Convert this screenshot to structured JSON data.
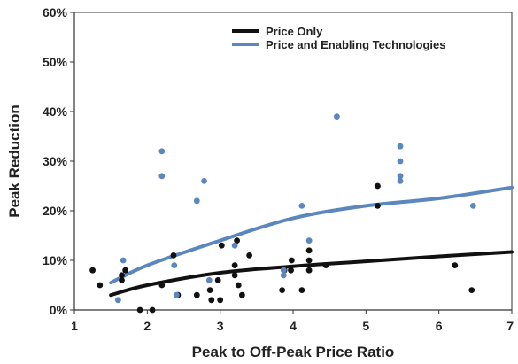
{
  "chart_data": {
    "type": "scatter",
    "xlabel": "Peak to Off-Peak Price Ratio",
    "ylabel": "Peak Reduction",
    "xlim": [
      1,
      7
    ],
    "ylim": [
      0,
      60
    ],
    "x_ticks": [
      "1",
      "2",
      "3",
      "4",
      "5",
      "6",
      "7"
    ],
    "y_ticks": [
      "0%",
      "10%",
      "20%",
      "30%",
      "40%",
      "50%",
      "60%"
    ],
    "grid": false,
    "legend_position": "top-center",
    "series": [
      {
        "name": "Price Only",
        "color": "#111111",
        "points": [
          [
            1.25,
            8
          ],
          [
            1.35,
            5
          ],
          [
            1.65,
            6
          ],
          [
            1.65,
            7
          ],
          [
            1.7,
            8
          ],
          [
            1.9,
            0
          ],
          [
            2.07,
            0
          ],
          [
            2.2,
            5
          ],
          [
            2.36,
            11
          ],
          [
            2.42,
            3
          ],
          [
            2.68,
            3
          ],
          [
            2.86,
            4
          ],
          [
            2.88,
            2
          ],
          [
            2.97,
            6
          ],
          [
            3.0,
            2
          ],
          [
            3.02,
            13
          ],
          [
            3.2,
            7
          ],
          [
            3.2,
            9
          ],
          [
            3.23,
            14
          ],
          [
            3.25,
            5
          ],
          [
            3.3,
            3
          ],
          [
            3.4,
            11
          ],
          [
            3.85,
            4
          ],
          [
            3.88,
            8
          ],
          [
            3.97,
            8
          ],
          [
            3.98,
            10
          ],
          [
            4.12,
            4
          ],
          [
            4.22,
            8
          ],
          [
            4.22,
            10
          ],
          [
            4.22,
            12
          ],
          [
            4.45,
            9
          ],
          [
            5.16,
            25
          ],
          [
            5.16,
            21
          ],
          [
            6.22,
            9
          ],
          [
            6.45,
            4
          ]
        ],
        "trend": [
          [
            1.5,
            3
          ],
          [
            2,
            5
          ],
          [
            3,
            7.5
          ],
          [
            4,
            8.8
          ],
          [
            5,
            9.8
          ],
          [
            6,
            10.8
          ],
          [
            7,
            11.7
          ]
        ]
      },
      {
        "name": "Price and Enabling Technologies",
        "color": "#5b87be",
        "points": [
          [
            1.6,
            2
          ],
          [
            1.67,
            10
          ],
          [
            2.2,
            32
          ],
          [
            2.2,
            27
          ],
          [
            2.37,
            9
          ],
          [
            2.4,
            3
          ],
          [
            2.68,
            22
          ],
          [
            2.78,
            26
          ],
          [
            2.85,
            6
          ],
          [
            3.2,
            13
          ],
          [
            3.87,
            8
          ],
          [
            3.87,
            7
          ],
          [
            4.12,
            21
          ],
          [
            4.22,
            14
          ],
          [
            4.6,
            39
          ],
          [
            5.47,
            33
          ],
          [
            5.47,
            30
          ],
          [
            5.47,
            27
          ],
          [
            5.47,
            26
          ],
          [
            6.47,
            21
          ]
        ],
        "trend": [
          [
            1.5,
            5.5
          ],
          [
            2,
            9
          ],
          [
            3,
            14
          ],
          [
            4,
            18.5
          ],
          [
            5,
            21
          ],
          [
            6,
            22.5
          ],
          [
            7,
            24.7
          ]
        ]
      }
    ]
  }
}
